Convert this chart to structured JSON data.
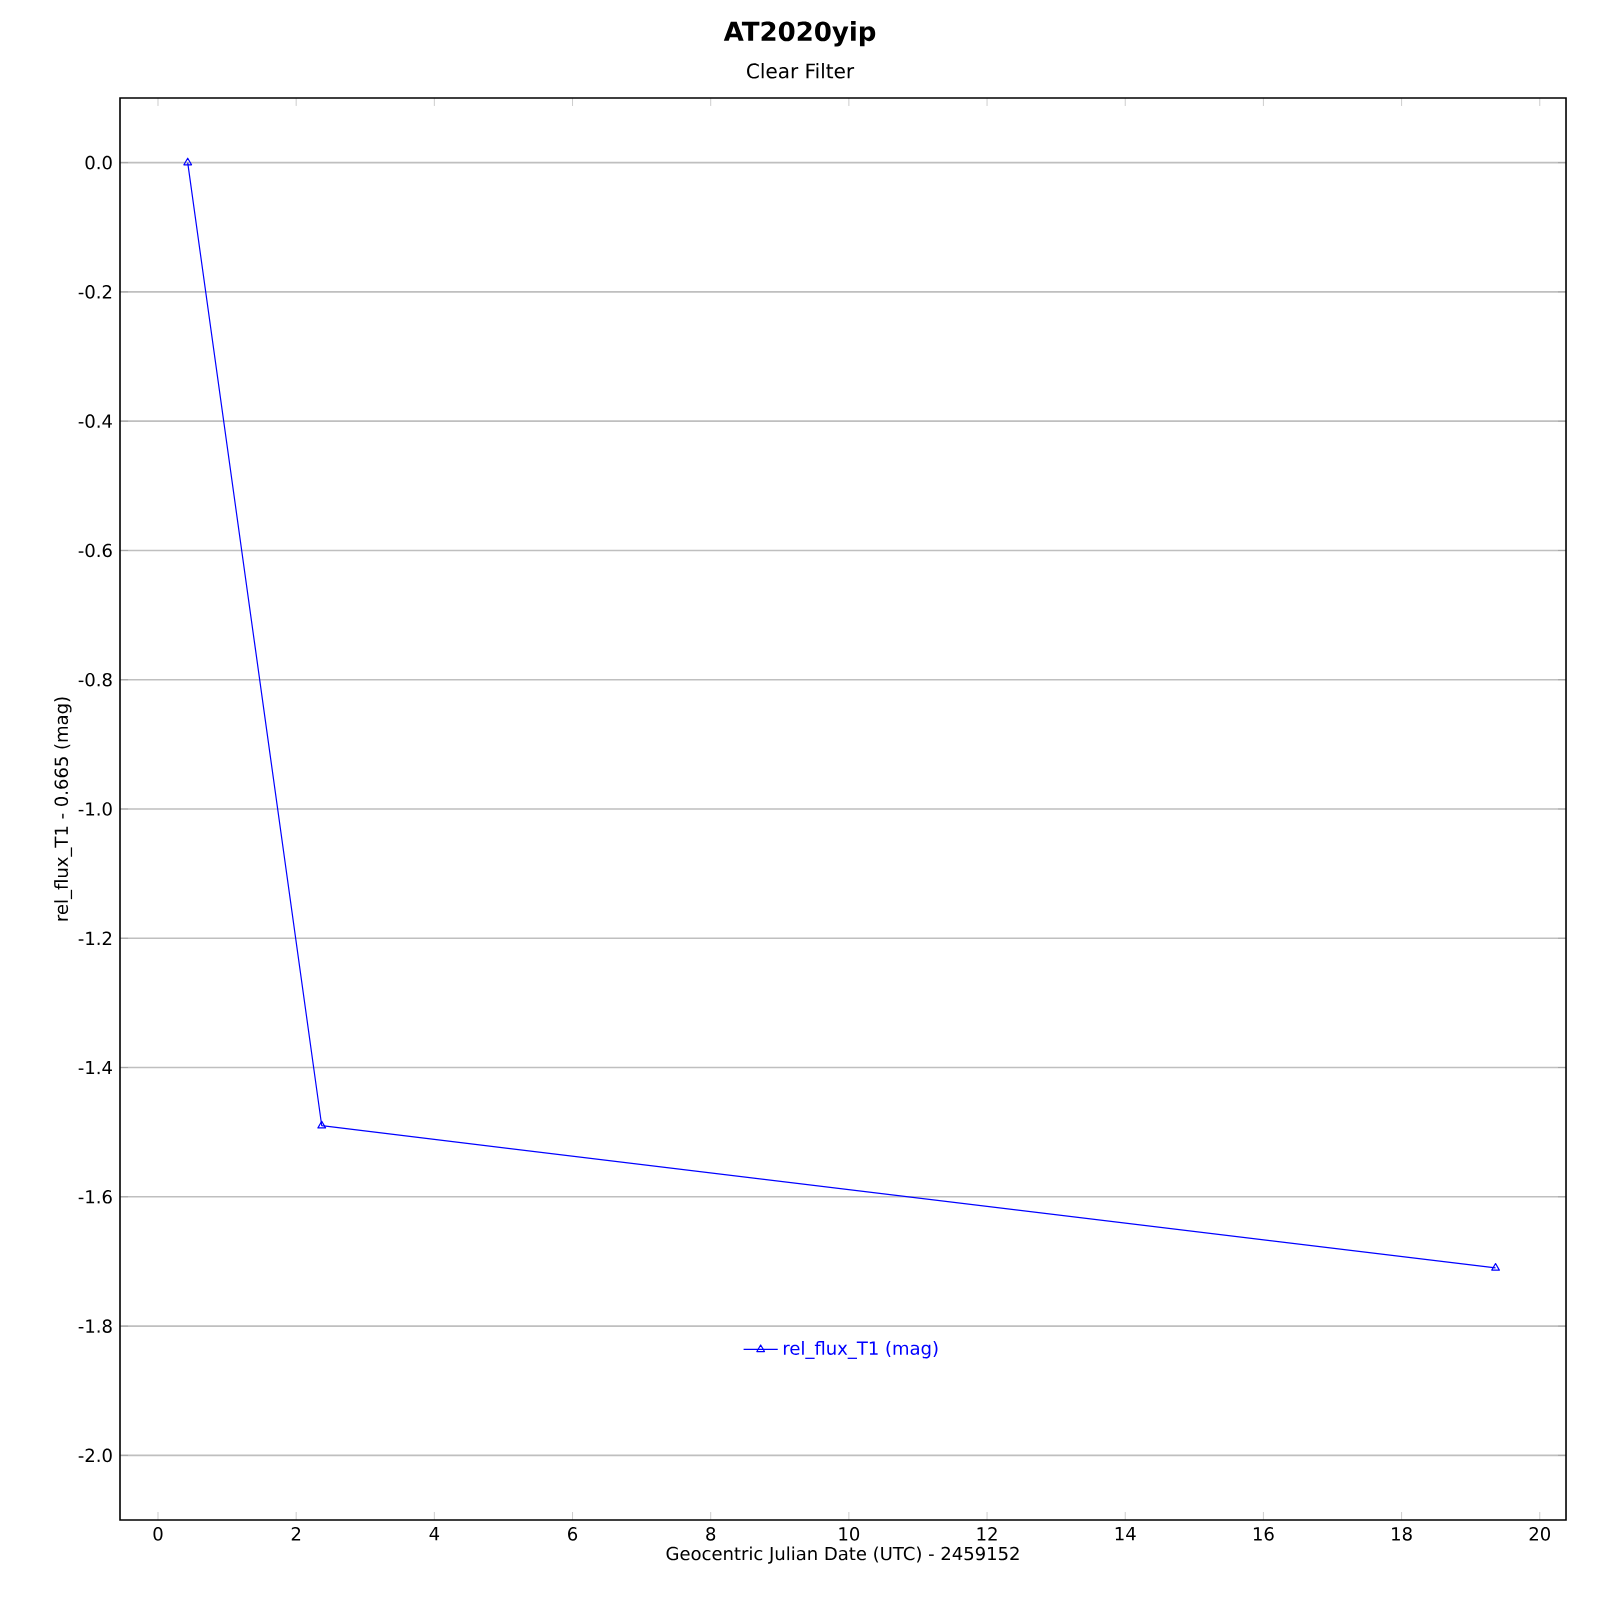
{
  "chart_data": {
    "type": "line",
    "title": "AT2020yip",
    "subtitle": "Clear Filter",
    "xlabel": "Geocentric Julian Date (UTC) - 2459152",
    "ylabel": "rel_flux_T1 - 0.665 (mag)",
    "x": [
      0.43,
      2.37,
      19.36
    ],
    "series": [
      {
        "name": "rel_flux_T1 (mag)",
        "color": "#0000ff",
        "values": [
          0.0,
          -1.49,
          -1.71
        ]
      }
    ],
    "xlim": [
      -0.55,
      20.38
    ],
    "ylim": [
      -2.1,
      0.1
    ],
    "xticks": [
      0,
      2,
      4,
      6,
      8,
      10,
      12,
      14,
      16,
      18,
      20
    ],
    "yticks": [
      {
        "value": 0,
        "label": "0.0"
      },
      {
        "value": -0.2,
        "label": "-0.2"
      },
      {
        "value": -0.4,
        "label": "-0.4"
      },
      {
        "value": -0.6,
        "label": "-0.6"
      },
      {
        "value": -0.8,
        "label": "-0.8"
      },
      {
        "value": -1.0,
        "label": "-1.0"
      },
      {
        "value": -1.2,
        "label": "-1.2"
      },
      {
        "value": -1.4,
        "label": "-1.4"
      },
      {
        "value": -1.6,
        "label": "-1.6"
      },
      {
        "value": -1.8,
        "label": "-1.8"
      },
      {
        "value": -2.0,
        "label": "-2.0"
      }
    ],
    "grid": "y",
    "legend": "bottom",
    "marker": "triangle",
    "line_style": "solid"
  }
}
